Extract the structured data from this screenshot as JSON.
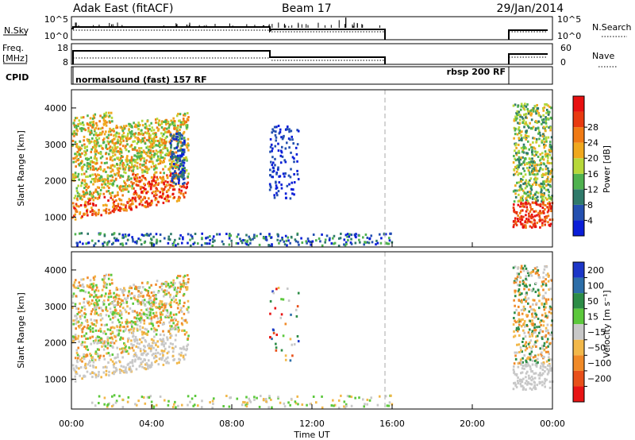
{
  "header": {
    "station": "Adak East (fitACF)",
    "beam": "Beam 17",
    "date": "29/Jan/2014"
  },
  "panels": {
    "nsky_label": "N.Sky",
    "nsky_ticks": [
      "10^5",
      "10^0"
    ],
    "nsearch_label": "N.Search",
    "nsearch_ticks": [
      "10^5",
      "10^0"
    ],
    "freq_label_line1": "Freq.",
    "freq_label_line2": "[MHz]",
    "freq_ticks": [
      "18",
      "8"
    ],
    "nave_label": "Nave",
    "nave_ticks": [
      "60",
      "0"
    ],
    "cpid_label": "CPID",
    "cpid_segments": [
      {
        "start_hr": 0,
        "end_hr": 22.0,
        "label": "normalsound (fast) 157 RF"
      },
      {
        "start_hr": 22.0,
        "end_hr": 24,
        "label": "rbsp 200 RF"
      }
    ]
  },
  "chart_data": [
    {
      "type": "heatmap",
      "name": "power",
      "ylabel": "Slant Range [km]",
      "ylim": [
        180,
        4500
      ],
      "yticks": [
        "1000",
        "2000",
        "3000",
        "4000"
      ],
      "colorbar_label": "Power [dB]",
      "colorbar_ticks": [
        "4",
        "8",
        "12",
        "16",
        "20",
        "24",
        "28"
      ],
      "colorbar_colors": [
        "#0a1ed8",
        "#2450b0",
        "#2f7a6a",
        "#4fb24f",
        "#b7d83a",
        "#f0a81e",
        "#f07a14",
        "#e83a10",
        "#e81010"
      ],
      "gap_marker_hr": 15.75,
      "data_gap_hr": [
        16.0,
        22.0
      ]
    },
    {
      "type": "heatmap",
      "name": "velocity",
      "ylabel": "Slant Range [km]",
      "ylim": [
        180,
        4500
      ],
      "yticks": [
        "1000",
        "2000",
        "3000",
        "4000"
      ],
      "colorbar_label": "Velocity [m s⁻¹]",
      "colorbar_ticks": [
        "200",
        "100",
        "50",
        "15",
        "−15",
        "−50",
        "−100",
        "−200"
      ],
      "colorbar_colors": [
        "#1c36c8",
        "#2d6ea8",
        "#2c8c46",
        "#5cc83c",
        "#c8c8c8",
        "#f2b84a",
        "#f08a28",
        "#e8501a",
        "#e81414"
      ],
      "gap_marker_hr": 15.75,
      "data_gap_hr": [
        16.0,
        22.0
      ]
    }
  ],
  "xaxis": {
    "label": "Time UT",
    "ticks": [
      "00:00",
      "04:00",
      "08:00",
      "12:00",
      "16:00",
      "20:00",
      "00:00"
    ]
  }
}
